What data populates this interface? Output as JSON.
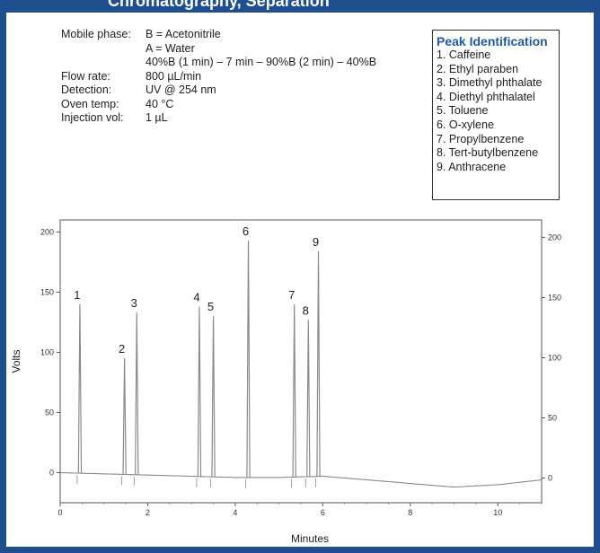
{
  "header": {
    "banner_text": "Chromatography, Separation"
  },
  "conditions": [
    {
      "label": "Mobile phase:",
      "value": "B = Acetonitrile"
    },
    {
      "label": "",
      "value": "A = Water"
    },
    {
      "label": "",
      "value": "40%B (1 min) – 7 min – 90%B (2 min) – 40%B"
    },
    {
      "label": "Flow rate:",
      "value": "800 µL/min"
    },
    {
      "label": "Detection:",
      "value": "UV @ 254 nm"
    },
    {
      "label": "Oven temp:",
      "value": "40 °C"
    },
    {
      "label": "Injection vol:",
      "value": "1 µL"
    }
  ],
  "peak_id": {
    "title": "Peak Identification",
    "items": [
      "1. Caffeine",
      "2. Ethyl paraben",
      "3. Dimethyl phthalate",
      "4. Diethyl phthalatel",
      "5. Toluene",
      "6. O-xylene",
      "7. Propylbenzene",
      "8. Tert-butylbenzene",
      "9. Anthracene"
    ]
  },
  "colors": {
    "frame": "#1f4f8f",
    "peak_title": "#1f5aa8",
    "trace": "#8a8a8a"
  },
  "chart_data": {
    "type": "line",
    "title": "",
    "xlabel": "Minutes",
    "ylabel": "Volts",
    "xlim": [
      0,
      11
    ],
    "ylim": [
      -25,
      210
    ],
    "x_ticks": [
      0,
      2,
      4,
      6,
      8,
      10
    ],
    "y_ticks_left": [
      0,
      50,
      100,
      150,
      200
    ],
    "y_ticks_right": [
      0,
      50,
      100,
      150,
      200
    ],
    "baseline": [
      [
        0,
        0
      ],
      [
        1,
        -1
      ],
      [
        2,
        -2
      ],
      [
        3,
        -3
      ],
      [
        4,
        -4
      ],
      [
        5,
        -4
      ],
      [
        6,
        -3
      ],
      [
        7,
        -6
      ],
      [
        8,
        -9
      ],
      [
        9,
        -12
      ],
      [
        10,
        -10
      ],
      [
        11,
        -6
      ]
    ],
    "peaks": [
      {
        "label": "1",
        "x": 0.45,
        "y": 140
      },
      {
        "label": "2",
        "x": 1.47,
        "y": 95
      },
      {
        "label": "3",
        "x": 1.75,
        "y": 133
      },
      {
        "label": "4",
        "x": 3.18,
        "y": 138
      },
      {
        "label": "5",
        "x": 3.5,
        "y": 130
      },
      {
        "label": "6",
        "x": 4.3,
        "y": 193
      },
      {
        "label": "7",
        "x": 5.35,
        "y": 140
      },
      {
        "label": "8",
        "x": 5.67,
        "y": 127
      },
      {
        "label": "9",
        "x": 5.9,
        "y": 184
      }
    ]
  }
}
